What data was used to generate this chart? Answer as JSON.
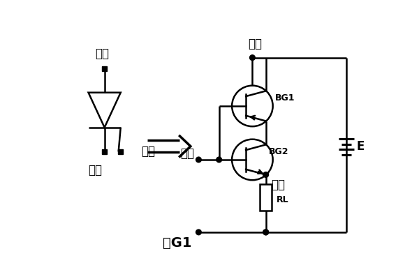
{
  "bg_color": "#ffffff",
  "figsize": [
    6.0,
    4.0
  ],
  "dpi": 100,
  "lw": 1.8,
  "labels": {
    "yang_left": "阳极",
    "yin_left": "阴极",
    "shan_left": "栅极",
    "yang_right": "阳极",
    "shan_right": "栅极",
    "yin_right": "阴极",
    "BG1": "BG1",
    "BG2": "BG2",
    "RL": "RL",
    "E": "E",
    "fig": "图G1"
  },
  "font_size_large": 12,
  "font_size_small": 9
}
